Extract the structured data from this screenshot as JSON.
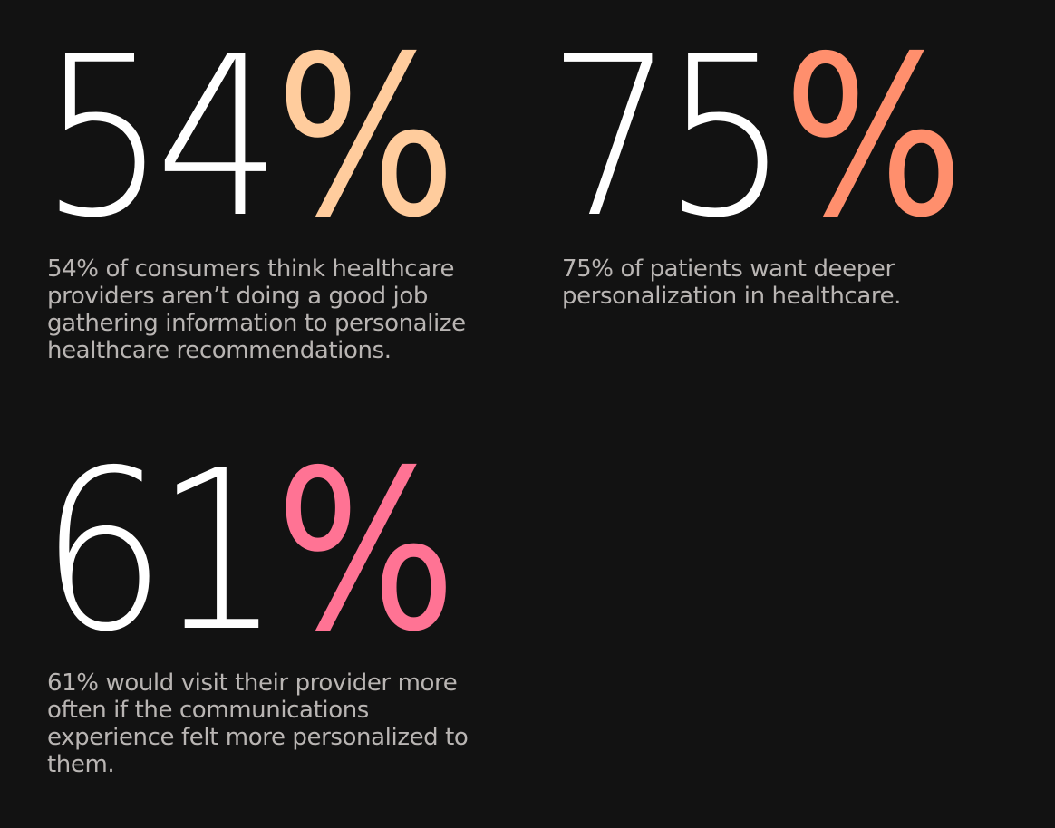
{
  "stats": [
    {
      "number": "54",
      "percent_sign": "%",
      "accent_color": "#ffcc9d",
      "description": "54% of consumers think healthcare providers aren’t doing a good job gathering information to personalize healthcare recommendations."
    },
    {
      "number": "75",
      "percent_sign": "%",
      "accent_color": "#ff8f6d",
      "description": "75% of patients want deeper personalization in healthcare."
    },
    {
      "number": "61",
      "percent_sign": "%",
      "accent_color": "#ff7394",
      "description": "61% would visit their provider more often if the communications experience felt more personalized to them."
    }
  ],
  "colors": {
    "background": "#121212",
    "number": "#ffffff",
    "description": "#b9b5b3"
  }
}
